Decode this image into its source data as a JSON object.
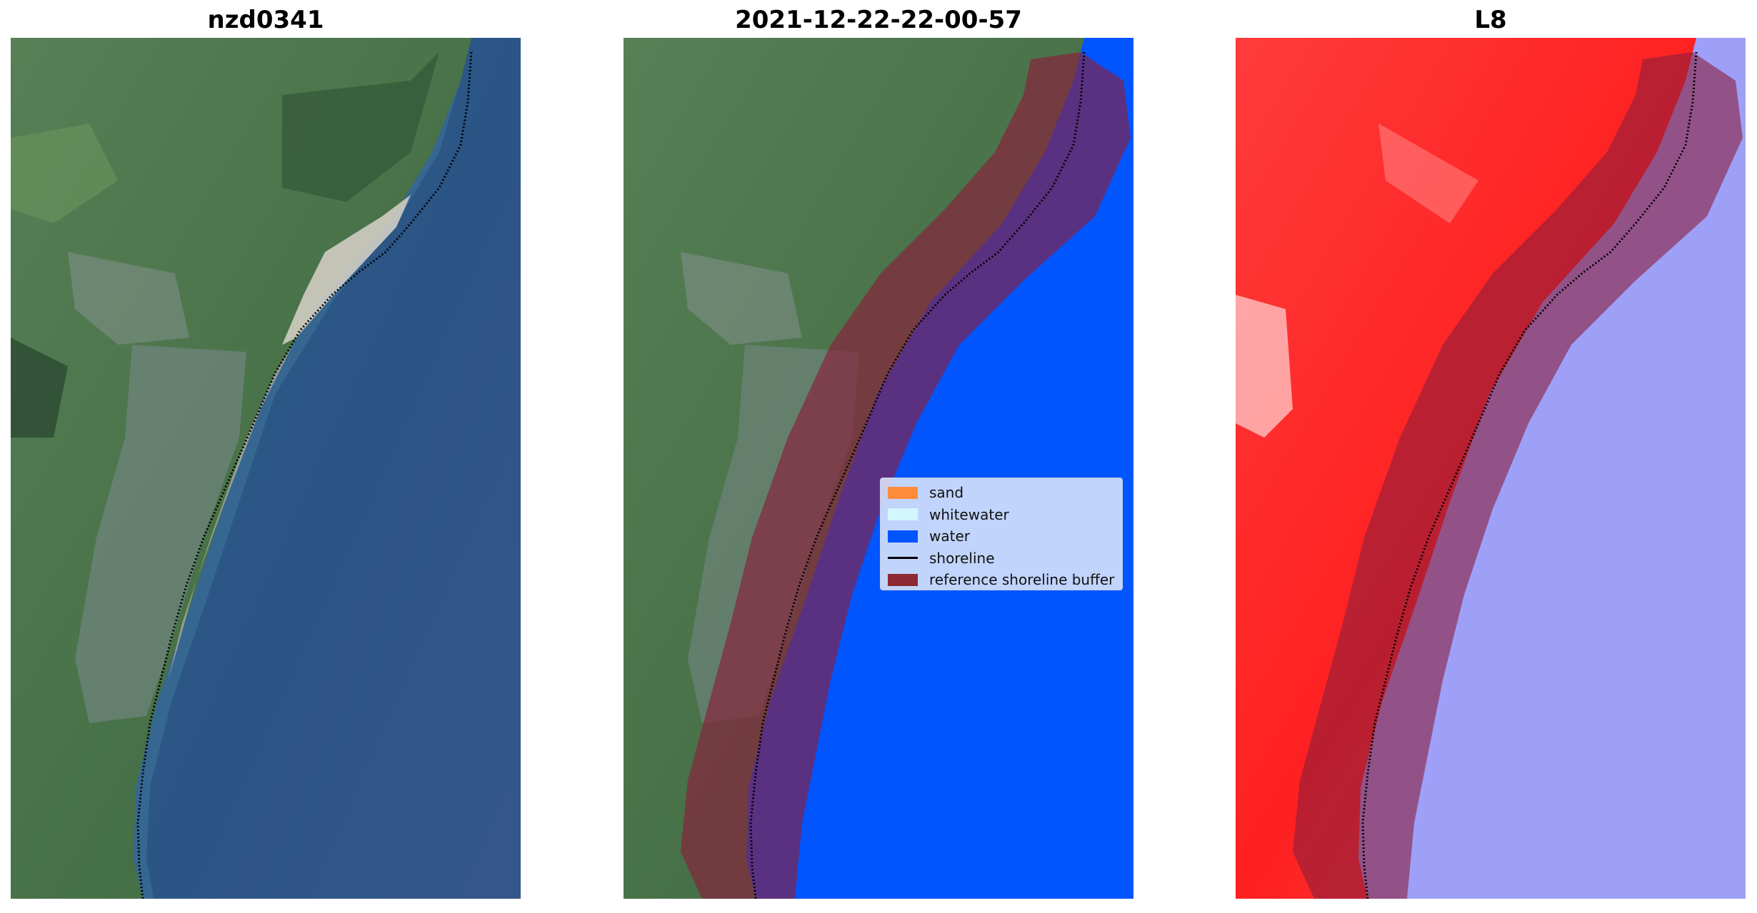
{
  "panels": [
    {
      "title": "nzd0341"
    },
    {
      "title": "2021-12-22-22-00-57"
    },
    {
      "title": "L8"
    }
  ],
  "legend": {
    "items": [
      {
        "label": "sand",
        "color": "#ff8c3a",
        "kind": "patch"
      },
      {
        "label": "whitewater",
        "color": "#d2f7ff",
        "kind": "patch"
      },
      {
        "label": "water",
        "color": "#0055ff",
        "kind": "patch"
      },
      {
        "label": "shoreline",
        "color": "#000000",
        "kind": "line"
      },
      {
        "label": "reference shoreline buffer",
        "color": "#8b2a32",
        "kind": "patch"
      }
    ]
  },
  "colors": {
    "ocean_rgb": "#2f5a86",
    "land_rgb": "#4e7a4a",
    "water_class": "#0055ff",
    "buffer_overlay": "#8b1e3c",
    "index_red": "#ff2a2a",
    "index_blue": "#9a9cf8"
  }
}
